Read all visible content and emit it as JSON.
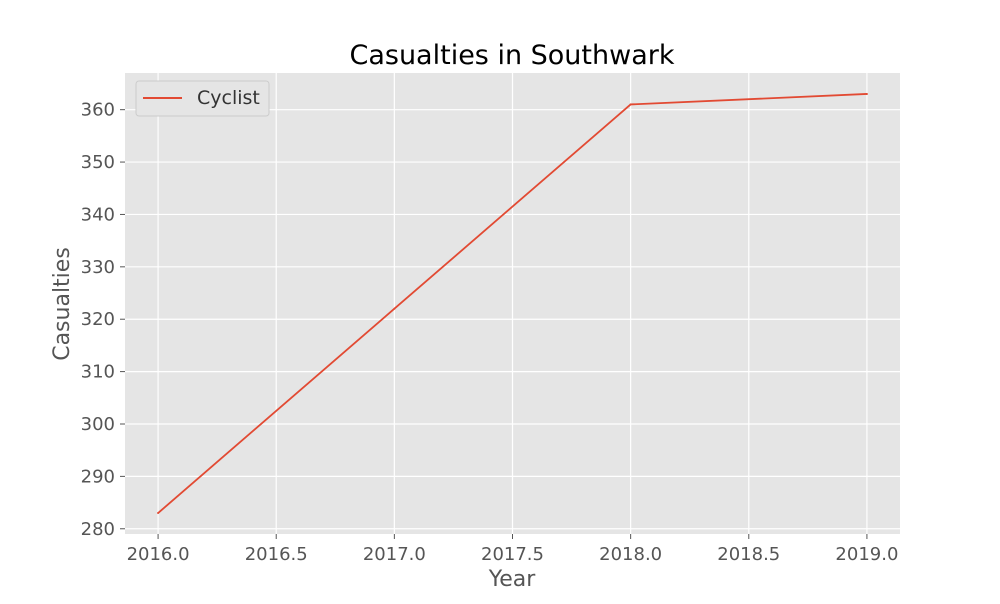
{
  "chart_data": {
    "type": "line",
    "title": "Casualties in Southwark",
    "xlabel": "Year",
    "ylabel": "Casualties",
    "xlim": [
      2015.86,
      2019.14
    ],
    "ylim": [
      279.0,
      367.0
    ],
    "xticks": [
      2016.0,
      2016.5,
      2017.0,
      2017.5,
      2018.0,
      2018.5,
      2019.0
    ],
    "xtick_labels": [
      "2016.0",
      "2016.5",
      "2017.0",
      "2017.5",
      "2018.0",
      "2018.5",
      "2019.0"
    ],
    "yticks": [
      280,
      290,
      300,
      310,
      320,
      330,
      340,
      350,
      360
    ],
    "ytick_labels": [
      "280",
      "290",
      "300",
      "310",
      "320",
      "330",
      "340",
      "350",
      "360"
    ],
    "grid": true,
    "legend_position": "upper-left",
    "series": [
      {
        "name": "Cyclist",
        "color": "#E24A33",
        "x": [
          2016,
          2017,
          2018,
          2019
        ],
        "y": [
          283,
          322,
          361,
          363
        ]
      }
    ]
  },
  "colors": {
    "plot_background": "#E5E5E5",
    "grid": "#FFFFFF",
    "text": "#555555",
    "title": "#000000"
  }
}
